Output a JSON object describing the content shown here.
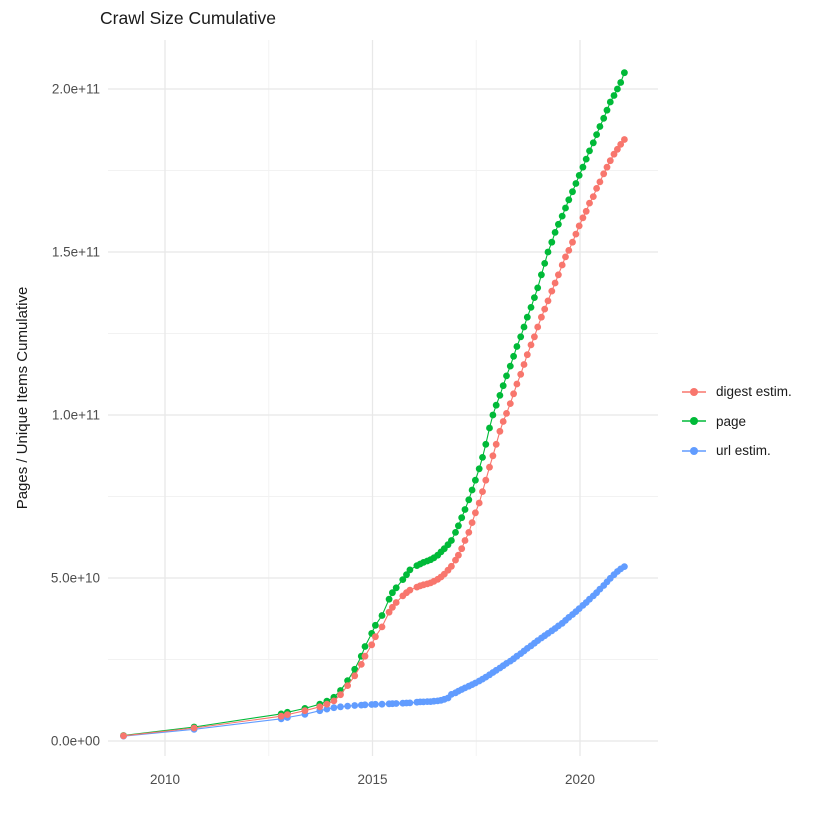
{
  "title": "Crawl Size Cumulative",
  "y_axis": {
    "label": "Pages / Unique Items Cumulative"
  },
  "chart_data": {
    "type": "line",
    "title": "Crawl Size Cumulative",
    "xlabel": "",
    "ylabel": "Pages / Unique Items Cumulative",
    "unit_note": "point values are in billions (1e9) of pages / unique items",
    "xlim": [
      2008.6,
      2021.9
    ],
    "ylim_e9": [
      0,
      212
    ],
    "grid": true,
    "legend_position": "right",
    "x_ticks": [
      {
        "v": 2010,
        "label": "2010"
      },
      {
        "v": 2015,
        "label": "2015"
      },
      {
        "v": 2020,
        "label": "2020"
      }
    ],
    "x_minor": [
      2012.5,
      2017.5
    ],
    "y_ticks": [
      {
        "v": 0,
        "label": "0.0e+00"
      },
      {
        "v": 50,
        "label": "5.0e+10"
      },
      {
        "v": 100,
        "label": "1.0e+11"
      },
      {
        "v": 150,
        "label": "1.5e+11"
      },
      {
        "v": 200,
        "label": "2.0e+11"
      }
    ],
    "y_minor": [
      25,
      75,
      125,
      175
    ],
    "series": [
      {
        "name": "digest estim.",
        "color": "#F8766D",
        "points": [
          [
            2009.0,
            1.6
          ],
          [
            2010.7,
            4.0
          ],
          [
            2012.8,
            7.6
          ],
          [
            2012.95,
            8.1
          ],
          [
            2013.37,
            9.3
          ],
          [
            2013.73,
            10.5
          ],
          [
            2013.9,
            11.3
          ],
          [
            2014.07,
            12.3
          ],
          [
            2014.23,
            14.2
          ],
          [
            2014.4,
            17.0
          ],
          [
            2014.57,
            20.0
          ],
          [
            2014.73,
            23.5
          ],
          [
            2014.82,
            26.0
          ],
          [
            2014.98,
            29.5
          ],
          [
            2015.07,
            32.0
          ],
          [
            2015.23,
            35.0
          ],
          [
            2015.4,
            39.5
          ],
          [
            2015.48,
            41.0
          ],
          [
            2015.57,
            42.5
          ],
          [
            2015.73,
            44.5
          ],
          [
            2015.82,
            45.5
          ],
          [
            2015.9,
            46.3
          ],
          [
            2016.07,
            47.2
          ],
          [
            2016.15,
            47.6
          ],
          [
            2016.23,
            47.9
          ],
          [
            2016.32,
            48.2
          ],
          [
            2016.4,
            48.5
          ],
          [
            2016.48,
            49.0
          ],
          [
            2016.57,
            49.6
          ],
          [
            2016.65,
            50.3
          ],
          [
            2016.73,
            51.2
          ],
          [
            2016.82,
            52.4
          ],
          [
            2016.9,
            53.6
          ],
          [
            2017.0,
            55.5
          ],
          [
            2017.07,
            57.0
          ],
          [
            2017.15,
            59.0
          ],
          [
            2017.23,
            61.5
          ],
          [
            2017.32,
            64.0
          ],
          [
            2017.4,
            67.0
          ],
          [
            2017.48,
            70.0
          ],
          [
            2017.57,
            73.0
          ],
          [
            2017.65,
            76.5
          ],
          [
            2017.73,
            80.0
          ],
          [
            2017.82,
            84.0
          ],
          [
            2017.9,
            87.5
          ],
          [
            2017.98,
            91.0
          ],
          [
            2018.07,
            95.0
          ],
          [
            2018.15,
            98.0
          ],
          [
            2018.23,
            100.5
          ],
          [
            2018.32,
            103.5
          ],
          [
            2018.4,
            106.5
          ],
          [
            2018.48,
            109.5
          ],
          [
            2018.57,
            112.5
          ],
          [
            2018.65,
            115.5
          ],
          [
            2018.73,
            118.5
          ],
          [
            2018.82,
            121.5
          ],
          [
            2018.9,
            124.0
          ],
          [
            2018.98,
            127.0
          ],
          [
            2019.07,
            130.0
          ],
          [
            2019.15,
            132.5
          ],
          [
            2019.23,
            135.0
          ],
          [
            2019.32,
            138.0
          ],
          [
            2019.4,
            140.5
          ],
          [
            2019.48,
            143.0
          ],
          [
            2019.57,
            146.0
          ],
          [
            2019.65,
            148.5
          ],
          [
            2019.73,
            150.5
          ],
          [
            2019.82,
            153.0
          ],
          [
            2019.9,
            155.5
          ],
          [
            2019.98,
            158.0
          ],
          [
            2020.07,
            160.5
          ],
          [
            2020.15,
            162.5
          ],
          [
            2020.23,
            165.0
          ],
          [
            2020.32,
            167.0
          ],
          [
            2020.4,
            169.5
          ],
          [
            2020.48,
            171.5
          ],
          [
            2020.57,
            174.0
          ],
          [
            2020.65,
            176.0
          ],
          [
            2020.73,
            178.0
          ],
          [
            2020.82,
            180.0
          ],
          [
            2020.9,
            181.5
          ],
          [
            2020.98,
            183.0
          ],
          [
            2021.07,
            184.5
          ]
        ]
      },
      {
        "name": "page",
        "color": "#00BA38",
        "points": [
          [
            2009.0,
            1.7
          ],
          [
            2010.7,
            4.3
          ],
          [
            2012.8,
            8.3
          ],
          [
            2012.95,
            8.8
          ],
          [
            2013.37,
            10.0
          ],
          [
            2013.73,
            11.3
          ],
          [
            2013.9,
            12.2
          ],
          [
            2014.07,
            13.4
          ],
          [
            2014.23,
            15.5
          ],
          [
            2014.4,
            18.5
          ],
          [
            2014.57,
            22.0
          ],
          [
            2014.73,
            26.0
          ],
          [
            2014.82,
            29.0
          ],
          [
            2014.98,
            33.0
          ],
          [
            2015.07,
            35.5
          ],
          [
            2015.23,
            38.5
          ],
          [
            2015.4,
            43.5
          ],
          [
            2015.48,
            45.5
          ],
          [
            2015.57,
            47.0
          ],
          [
            2015.73,
            49.5
          ],
          [
            2015.82,
            51.0
          ],
          [
            2015.9,
            52.5
          ],
          [
            2016.07,
            53.8
          ],
          [
            2016.15,
            54.3
          ],
          [
            2016.23,
            54.8
          ],
          [
            2016.32,
            55.2
          ],
          [
            2016.4,
            55.6
          ],
          [
            2016.48,
            56.2
          ],
          [
            2016.57,
            57.0
          ],
          [
            2016.65,
            58.0
          ],
          [
            2016.73,
            59.0
          ],
          [
            2016.82,
            60.2
          ],
          [
            2016.9,
            61.5
          ],
          [
            2017.0,
            64.0
          ],
          [
            2017.07,
            66.0
          ],
          [
            2017.15,
            68.5
          ],
          [
            2017.23,
            71.0
          ],
          [
            2017.32,
            74.0
          ],
          [
            2017.4,
            77.0
          ],
          [
            2017.48,
            80.0
          ],
          [
            2017.57,
            83.5
          ],
          [
            2017.65,
            87.0
          ],
          [
            2017.73,
            91.0
          ],
          [
            2017.82,
            96.0
          ],
          [
            2017.9,
            100.0
          ],
          [
            2017.98,
            103.0
          ],
          [
            2018.07,
            106.0
          ],
          [
            2018.15,
            109.0
          ],
          [
            2018.23,
            112.0
          ],
          [
            2018.32,
            115.0
          ],
          [
            2018.4,
            118.0
          ],
          [
            2018.48,
            121.0
          ],
          [
            2018.57,
            124.0
          ],
          [
            2018.65,
            127.0
          ],
          [
            2018.73,
            130.0
          ],
          [
            2018.82,
            133.0
          ],
          [
            2018.9,
            136.0
          ],
          [
            2018.98,
            139.0
          ],
          [
            2019.07,
            143.0
          ],
          [
            2019.15,
            146.5
          ],
          [
            2019.23,
            150.0
          ],
          [
            2019.32,
            153.0
          ],
          [
            2019.4,
            156.0
          ],
          [
            2019.48,
            158.5
          ],
          [
            2019.57,
            161.0
          ],
          [
            2019.65,
            163.5
          ],
          [
            2019.73,
            166.0
          ],
          [
            2019.82,
            168.5
          ],
          [
            2019.9,
            171.0
          ],
          [
            2019.98,
            173.5
          ],
          [
            2020.07,
            176.0
          ],
          [
            2020.15,
            178.5
          ],
          [
            2020.23,
            181.0
          ],
          [
            2020.32,
            183.5
          ],
          [
            2020.4,
            186.0
          ],
          [
            2020.48,
            188.5
          ],
          [
            2020.57,
            191.0
          ],
          [
            2020.65,
            193.5
          ],
          [
            2020.73,
            196.0
          ],
          [
            2020.82,
            198.0
          ],
          [
            2020.9,
            200.0
          ],
          [
            2020.98,
            202.0
          ],
          [
            2021.07,
            205.0
          ]
        ]
      },
      {
        "name": "url estim.",
        "color": "#619CFF",
        "points": [
          [
            2009.0,
            1.5
          ],
          [
            2010.7,
            3.6
          ],
          [
            2012.8,
            6.8
          ],
          [
            2012.95,
            7.2
          ],
          [
            2013.37,
            8.2
          ],
          [
            2013.73,
            9.3
          ],
          [
            2013.9,
            9.8
          ],
          [
            2014.07,
            10.2
          ],
          [
            2014.23,
            10.5
          ],
          [
            2014.4,
            10.7
          ],
          [
            2014.57,
            10.9
          ],
          [
            2014.73,
            11.0
          ],
          [
            2014.82,
            11.1
          ],
          [
            2014.98,
            11.2
          ],
          [
            2015.07,
            11.25
          ],
          [
            2015.23,
            11.3
          ],
          [
            2015.4,
            11.4
          ],
          [
            2015.48,
            11.45
          ],
          [
            2015.57,
            11.5
          ],
          [
            2015.73,
            11.6
          ],
          [
            2015.82,
            11.65
          ],
          [
            2015.9,
            11.7
          ],
          [
            2016.07,
            11.9
          ],
          [
            2016.15,
            12.0
          ],
          [
            2016.23,
            12.0
          ],
          [
            2016.32,
            12.1
          ],
          [
            2016.4,
            12.1
          ],
          [
            2016.48,
            12.2
          ],
          [
            2016.57,
            12.3
          ],
          [
            2016.65,
            12.5
          ],
          [
            2016.73,
            12.8
          ],
          [
            2016.82,
            13.2
          ],
          [
            2016.9,
            14.3
          ],
          [
            2017.0,
            14.8
          ],
          [
            2017.07,
            15.3
          ],
          [
            2017.15,
            15.8
          ],
          [
            2017.23,
            16.3
          ],
          [
            2017.32,
            16.8
          ],
          [
            2017.4,
            17.3
          ],
          [
            2017.48,
            17.8
          ],
          [
            2017.57,
            18.4
          ],
          [
            2017.65,
            19.0
          ],
          [
            2017.73,
            19.6
          ],
          [
            2017.82,
            20.3
          ],
          [
            2017.9,
            21.0
          ],
          [
            2017.98,
            21.7
          ],
          [
            2018.07,
            22.4
          ],
          [
            2018.15,
            23.1
          ],
          [
            2018.23,
            23.8
          ],
          [
            2018.32,
            24.5
          ],
          [
            2018.4,
            25.2
          ],
          [
            2018.48,
            26.0
          ],
          [
            2018.57,
            26.8
          ],
          [
            2018.65,
            27.6
          ],
          [
            2018.73,
            28.4
          ],
          [
            2018.82,
            29.2
          ],
          [
            2018.9,
            30.0
          ],
          [
            2018.98,
            30.8
          ],
          [
            2019.07,
            31.6
          ],
          [
            2019.15,
            32.3
          ],
          [
            2019.23,
            33.0
          ],
          [
            2019.32,
            33.8
          ],
          [
            2019.4,
            34.5
          ],
          [
            2019.48,
            35.3
          ],
          [
            2019.57,
            36.1
          ],
          [
            2019.65,
            37.0
          ],
          [
            2019.73,
            37.9
          ],
          [
            2019.82,
            38.8
          ],
          [
            2019.9,
            39.7
          ],
          [
            2019.98,
            40.6
          ],
          [
            2020.07,
            41.6
          ],
          [
            2020.15,
            42.5
          ],
          [
            2020.23,
            43.5
          ],
          [
            2020.32,
            44.5
          ],
          [
            2020.4,
            45.5
          ],
          [
            2020.48,
            46.6
          ],
          [
            2020.57,
            47.7
          ],
          [
            2020.65,
            48.8
          ],
          [
            2020.73,
            49.9
          ],
          [
            2020.82,
            51.0
          ],
          [
            2020.9,
            52.0
          ],
          [
            2020.98,
            52.8
          ],
          [
            2021.07,
            53.5
          ]
        ]
      }
    ]
  },
  "legend": {
    "items": [
      {
        "label": "digest estim.",
        "color": "#F8766D"
      },
      {
        "label": "page",
        "color": "#00BA38"
      },
      {
        "label": "url estim.",
        "color": "#619CFF"
      }
    ]
  }
}
